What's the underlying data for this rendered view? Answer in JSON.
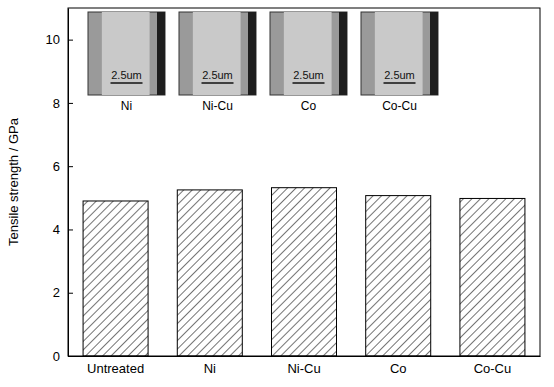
{
  "chart_data": {
    "type": "bar",
    "y_label": "Tensile strength / GPa",
    "categories": [
      "Untreated",
      "Ni",
      "Ni-Cu",
      "Co",
      "Co-Cu"
    ],
    "values": [
      4.9,
      5.25,
      5.32,
      5.07,
      4.98
    ],
    "color": "#000000",
    "ylim": [
      0,
      11
    ],
    "yticks": [
      0,
      2,
      4,
      6,
      8,
      10
    ],
    "annotations": [
      {
        "text": "Ni",
        "scale_bar": "2.5um"
      },
      {
        "text": "Ni-Cu",
        "scale_bar": "2.5um"
      },
      {
        "text": "Co",
        "scale_bar": "2.5um"
      },
      {
        "text": "Co-Cu",
        "scale_bar": "2.5um"
      }
    ]
  }
}
